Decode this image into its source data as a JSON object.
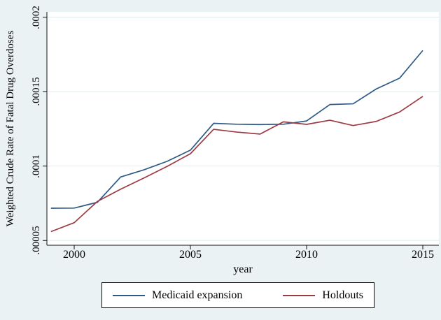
{
  "chart_data": {
    "type": "line",
    "title": "",
    "xlabel": "year",
    "ylabel": "Weighted Crude Rate of Fatal Drug Overdoses",
    "x": [
      1999,
      2000,
      2001,
      2002,
      2003,
      2004,
      2005,
      2006,
      2007,
      2008,
      2009,
      2010,
      2011,
      2012,
      2013,
      2014,
      2015
    ],
    "series": [
      {
        "name": "Medicaid expansion",
        "color": "#2d5a87",
        "values": [
          7.17e-05,
          7.18e-05,
          7.57e-05,
          9.27e-05,
          9.75e-05,
          0.0001032,
          0.0001107,
          0.0001287,
          0.0001281,
          0.0001279,
          0.0001281,
          0.0001303,
          0.0001413,
          0.0001418,
          0.0001518,
          0.000159,
          0.0001776
        ]
      },
      {
        "name": "Holdouts",
        "color": "#9c3a42",
        "values": [
          5.6e-05,
          6.2e-05,
          7.63e-05,
          8.45e-05,
          9.2e-05,
          9.98e-05,
          0.0001083,
          0.0001247,
          0.0001228,
          0.0001215,
          0.0001297,
          0.000128,
          0.0001308,
          0.0001272,
          0.00013,
          0.0001363,
          0.0001468
        ]
      }
    ],
    "xtick_labels": [
      "2000",
      "2005",
      "2010",
      "2015"
    ],
    "ytick_labels": [
      ".0002",
      ".00015",
      ".0001",
      ".00005"
    ],
    "xticks": [
      2000,
      2005,
      2010,
      2015
    ],
    "yticks": [
      0.0002,
      0.00015,
      0.0001,
      5e-05
    ],
    "ylim": [
      5e-05,
      0.0002
    ],
    "xlim": [
      1999,
      2015
    ],
    "grid": "horizontal",
    "legend_position": "bottom-center",
    "background_color": "#eaf2f3",
    "plot_background_color": "#ffffff"
  }
}
